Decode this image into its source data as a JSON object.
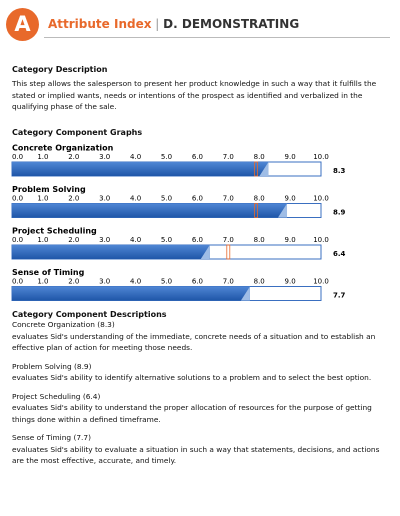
{
  "header": {
    "badge": "A",
    "title": "Attribute Index",
    "separator": "|",
    "subtitle": "D. DEMONSTRATING"
  },
  "description": {
    "heading": "Category Description",
    "text": "This step allows the salesperson to present her product knowledge in such a way that it fulfills the stated or implied wants, needs or intentions of the prospect as identified and verbalized in the qualifying phase of the sale."
  },
  "graphs": {
    "heading": "Category Component Graphs",
    "xlim": [
      0,
      10
    ],
    "ticks": [
      {
        "value": 0,
        "label": "0.0"
      },
      {
        "value": 1,
        "label": "1.0"
      },
      {
        "value": 2,
        "label": "2.0"
      },
      {
        "value": 3,
        "label": "3.0"
      },
      {
        "value": 4,
        "label": "4.0"
      },
      {
        "value": 5,
        "label": "5.0"
      },
      {
        "value": 6,
        "label": "6.0"
      },
      {
        "value": 7,
        "label": "7.0"
      },
      {
        "value": 8,
        "label": "8.0"
      },
      {
        "value": 9,
        "label": "9.0"
      },
      {
        "value": 10,
        "label": "10.0"
      }
    ],
    "items": [
      {
        "name": "Concrete Organization",
        "value": 8.3,
        "marker": 7.9
      },
      {
        "name": "Problem Solving",
        "value": 8.9,
        "marker": 7.9
      },
      {
        "name": "Project Scheduling",
        "value": 6.4,
        "marker": 7.0
      },
      {
        "name": "Sense of Timing",
        "value": 7.7
      }
    ]
  },
  "descriptions": {
    "heading": "Category Component Descriptions",
    "items": [
      {
        "title": "Concrete Organization (8.3)",
        "text": "evaluates Sid's understanding of the immediate, concrete needs of a situation and to establish an effective plan of action for meeting those needs."
      },
      {
        "title": "Problem Solving (8.9)",
        "text": "evaluates Sid's ability to identify alternative solutions to a problem and to select the best option."
      },
      {
        "title": "Project Scheduling (6.4)",
        "text": "evaluates Sid's ability to understand the proper allocation of resources for the purpose of getting things done within a defined timeframe."
      },
      {
        "title": "Sense of Timing (7.7)",
        "text": "evaluates Sid's ability to evaluate a situation in such a way that statements, decisions, and actions are the most effective, accurate, and timely."
      }
    ]
  }
}
